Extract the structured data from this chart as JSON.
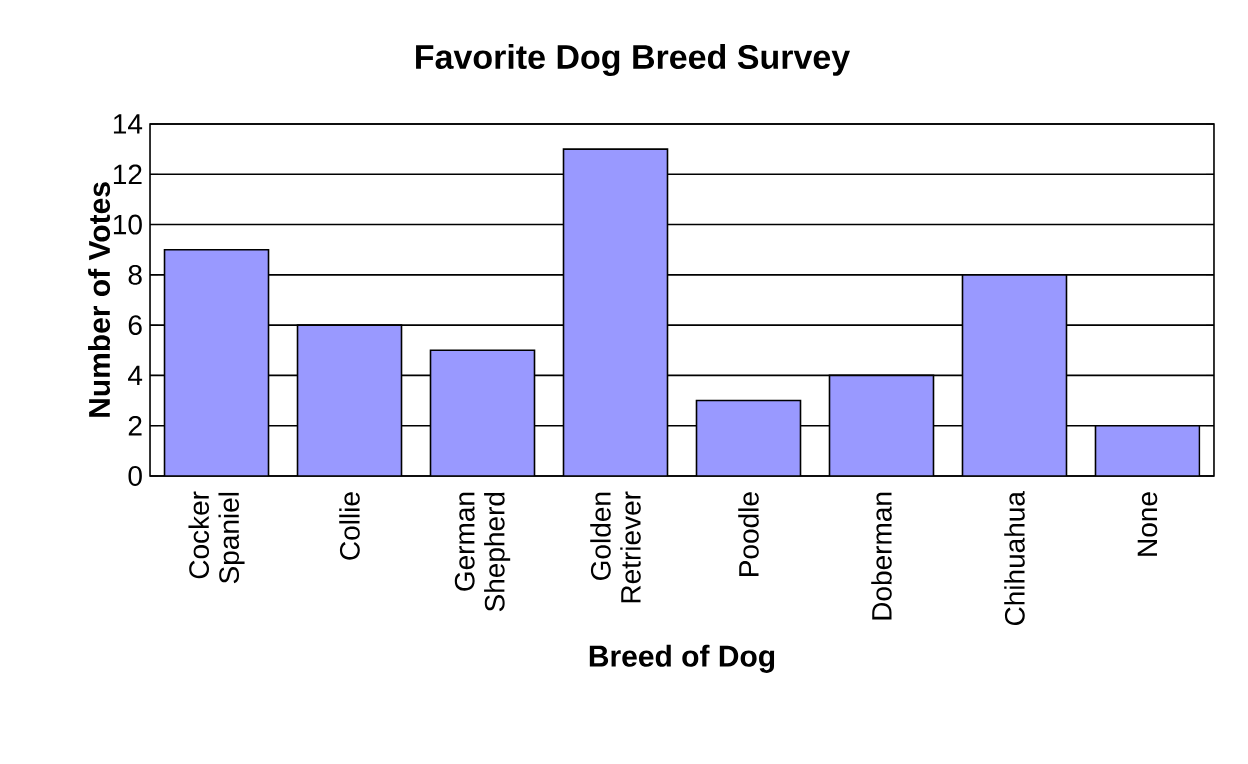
{
  "chart_data": {
    "type": "bar",
    "title": "Favorite Dog Breed Survey",
    "xlabel": "Breed of Dog",
    "ylabel": "Number of Votes",
    "categories": [
      "Cocker Spaniel",
      "Collie",
      "German Shepherd",
      "Golden Retriever",
      "Poodle",
      "Doberman",
      "Chihuahua",
      "None"
    ],
    "values": [
      9,
      6,
      5,
      13,
      3,
      4,
      8,
      2
    ],
    "color": "#9999ff",
    "ylim": [
      0,
      14
    ],
    "yticks": [
      0,
      2,
      4,
      6,
      8,
      10,
      12,
      14
    ],
    "grid": "y"
  }
}
